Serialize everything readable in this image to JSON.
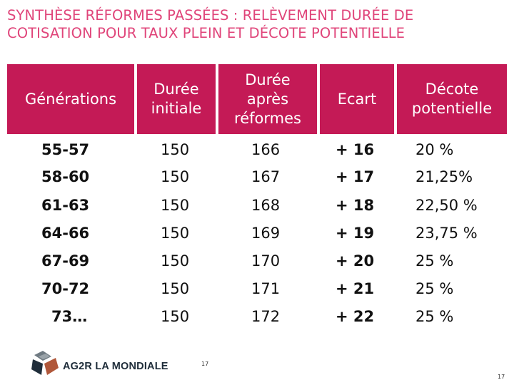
{
  "title": {
    "line1": "SYNTHÈSE RÉFORMES PASSÉES : RELÈVEMENT DURÉE DE",
    "line2": "COTISATION POUR TAUX PLEIN ET DÉCOTE POTENTIELLE"
  },
  "table": {
    "headers": {
      "generations": "Générations",
      "duree_initiale_1": "Durée",
      "duree_initiale_2": "initiale",
      "duree_apres_1": "Durée",
      "duree_apres_2": "après",
      "duree_apres_3": "réformes",
      "ecart": "Ecart",
      "decote_1": "Décote",
      "decote_2": "potentielle"
    },
    "rows": [
      {
        "generation": "55-57",
        "initiale": "150",
        "apres": "166",
        "ecart": "+ 16",
        "decote": "20 %"
      },
      {
        "generation": "58-60",
        "initiale": "150",
        "apres": "167",
        "ecart": "+ 17",
        "decote": "21,25%"
      },
      {
        "generation": "61-63",
        "initiale": "150",
        "apres": "168",
        "ecart": "+ 18",
        "decote": "22,50 %"
      },
      {
        "generation": "64-66",
        "initiale": "150",
        "apres": "169",
        "ecart": "+ 19",
        "decote": "23,75 %"
      },
      {
        "generation": "67-69",
        "initiale": "150",
        "apres": "170",
        "ecart": "+ 20",
        "decote": "25 %"
      },
      {
        "generation": "70-72",
        "initiale": "150",
        "apres": "171",
        "ecart": "+ 21",
        "decote": "25 %"
      },
      {
        "generation": "73…",
        "initiale": "150",
        "apres": "172",
        "ecart": "+ 22",
        "decote": "25 %"
      }
    ]
  },
  "footer": {
    "brand": "AG2R LA MONDIALE",
    "page_number_center": "17",
    "page_number_corner": "17"
  },
  "colors": {
    "title": "#e0457a",
    "header_bg": "#c41a56",
    "header_text": "#ffffff"
  },
  "icons": {
    "logo": "ag2r-logo-icon"
  }
}
